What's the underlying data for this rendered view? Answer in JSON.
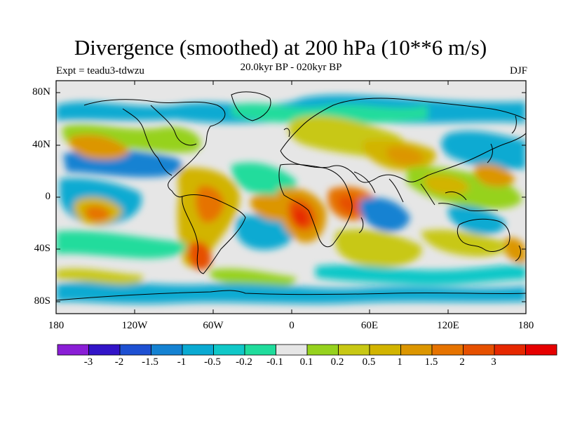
{
  "title": "Divergence (smoothed) at 200 hPa (10**6 m/s)",
  "subtitle": "20.0kyr BP - 020kyr BP",
  "experiment": "Expt = teadu3-tdwzu",
  "season": "DJF",
  "axes": {
    "y_ticks": [
      "80N",
      "40N",
      "0",
      "40S",
      "80S"
    ],
    "x_ticks": [
      "180",
      "120W",
      "60W",
      "0",
      "60E",
      "120E",
      "180"
    ]
  },
  "colorbar": {
    "colors": [
      "#8a1ed6",
      "#3214c8",
      "#1e50d2",
      "#1482d2",
      "#0aaad2",
      "#10c8c8",
      "#20dc9c",
      "#e6e6e6",
      "#96d21e",
      "#c8c814",
      "#d2b400",
      "#dc9600",
      "#e67300",
      "#e65000",
      "#e62800",
      "#e60000"
    ],
    "labels": [
      "-3",
      "-2",
      "-1.5",
      "-1",
      "-0.5",
      "-0.2",
      "-0.1",
      "0.1",
      "0.2",
      "0.5",
      "1",
      "1.5",
      "2",
      "3"
    ]
  }
}
